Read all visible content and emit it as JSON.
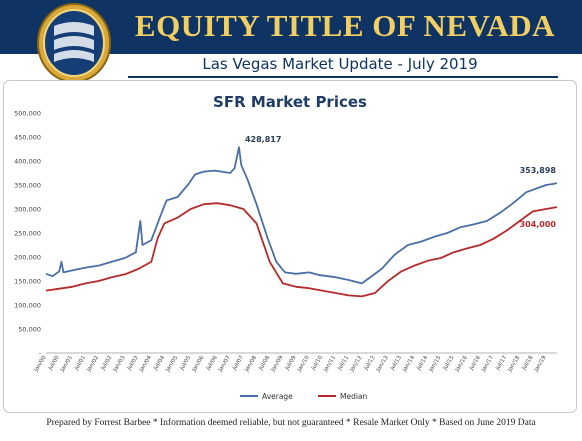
{
  "header": {
    "company": "EQUITY TITLE OF NEVADA",
    "subtitle": "Las Vegas Market Update - July 2019"
  },
  "footer": {
    "text": "Prepared by Forrest Barbee * Information deemed reliable, but not guaranteed * Resale Market Only * Based on June 2019 Data"
  },
  "colors": {
    "banner": "#0f3464",
    "gold": "#f2cf62",
    "average": "#4a6fa5",
    "median": "#b52a2a"
  },
  "chart_data": {
    "type": "line",
    "title": "SFR Market Prices",
    "xlabel": "",
    "ylabel": "",
    "ylim": [
      0,
      500000
    ],
    "yticks": [
      "-",
      "50,000",
      "100,000",
      "150,000",
      "200,000",
      "250,000",
      "300,000",
      "350,000",
      "400,000",
      "450,000",
      "500,000"
    ],
    "grid": false,
    "legend": "bottom-center",
    "x_start": "2000-01",
    "x_end": "2019-06",
    "xticks": [
      "Jan/00",
      "Jul/00",
      "Jan/01",
      "Jul/01",
      "Jan/02",
      "Jul/02",
      "Jan/03",
      "Jul/03",
      "Jan/04",
      "Jul/04",
      "Jan/05",
      "Jul/05",
      "Jan/06",
      "Jul/06",
      "Jan/07",
      "Jul/07",
      "Jan/08",
      "Jul/08",
      "Jan/09",
      "Jul/09",
      "Jan/10",
      "Jul/10",
      "Jan/11",
      "Jul/11",
      "Jan/12",
      "Jul/12",
      "Jan/13",
      "Jul/13",
      "Jan/14",
      "Jul/14",
      "Jan/15",
      "Jul/15",
      "Jan/16",
      "Jul/16",
      "Jan/17",
      "Jul/17",
      "Jan/18",
      "Jul/18",
      "Jan/19"
    ],
    "series": [
      {
        "name": "Average",
        "color": "#4a6fa5",
        "points": [
          [
            "2000-01",
            165000
          ],
          [
            "2000-04",
            160000
          ],
          [
            "2000-07",
            170000
          ],
          [
            "2000-08",
            190000
          ],
          [
            "2000-09",
            168000
          ],
          [
            "2001-01",
            172000
          ],
          [
            "2001-07",
            178000
          ],
          [
            "2002-01",
            182000
          ],
          [
            "2002-07",
            190000
          ],
          [
            "2003-01",
            198000
          ],
          [
            "2003-06",
            210000
          ],
          [
            "2003-08",
            275000
          ],
          [
            "2003-09",
            225000
          ],
          [
            "2004-01",
            235000
          ],
          [
            "2004-06",
            295000
          ],
          [
            "2004-08",
            318000
          ],
          [
            "2005-01",
            325000
          ],
          [
            "2005-06",
            352000
          ],
          [
            "2005-09",
            372000
          ],
          [
            "2006-01",
            378000
          ],
          [
            "2006-06",
            380000
          ],
          [
            "2007-01",
            375000
          ],
          [
            "2007-03",
            385000
          ],
          [
            "2007-05",
            428817
          ],
          [
            "2007-06",
            392000
          ],
          [
            "2007-09",
            360000
          ],
          [
            "2008-01",
            310000
          ],
          [
            "2008-06",
            240000
          ],
          [
            "2008-10",
            190000
          ],
          [
            "2009-02",
            168000
          ],
          [
            "2009-07",
            165000
          ],
          [
            "2010-01",
            168000
          ],
          [
            "2010-06",
            162000
          ],
          [
            "2011-01",
            158000
          ],
          [
            "2011-07",
            152000
          ],
          [
            "2012-01",
            145000
          ],
          [
            "2012-04",
            155000
          ],
          [
            "2012-10",
            175000
          ],
          [
            "2013-04",
            205000
          ],
          [
            "2013-10",
            225000
          ],
          [
            "2014-04",
            232000
          ],
          [
            "2014-10",
            242000
          ],
          [
            "2015-04",
            250000
          ],
          [
            "2015-10",
            262000
          ],
          [
            "2016-04",
            268000
          ],
          [
            "2016-10",
            275000
          ],
          [
            "2017-04",
            292000
          ],
          [
            "2017-10",
            312000
          ],
          [
            "2018-04",
            335000
          ],
          [
            "2018-10",
            345000
          ],
          [
            "2019-01",
            350000
          ],
          [
            "2019-04",
            352000
          ],
          [
            "2019-06",
            353898
          ]
        ]
      },
      {
        "name": "Median",
        "color": "#b52a2a",
        "points": [
          [
            "2000-01",
            130000
          ],
          [
            "2000-07",
            134000
          ],
          [
            "2001-01",
            138000
          ],
          [
            "2001-07",
            145000
          ],
          [
            "2002-01",
            150000
          ],
          [
            "2002-07",
            158000
          ],
          [
            "2003-01",
            164000
          ],
          [
            "2003-07",
            175000
          ],
          [
            "2004-01",
            190000
          ],
          [
            "2004-04",
            240000
          ],
          [
            "2004-07",
            270000
          ],
          [
            "2005-01",
            282000
          ],
          [
            "2005-07",
            300000
          ],
          [
            "2006-01",
            310000
          ],
          [
            "2006-07",
            312000
          ],
          [
            "2007-01",
            308000
          ],
          [
            "2007-07",
            300000
          ],
          [
            "2008-01",
            270000
          ],
          [
            "2008-07",
            190000
          ],
          [
            "2009-01",
            145000
          ],
          [
            "2009-07",
            138000
          ],
          [
            "2010-01",
            135000
          ],
          [
            "2010-07",
            130000
          ],
          [
            "2011-01",
            125000
          ],
          [
            "2011-07",
            120000
          ],
          [
            "2012-01",
            118000
          ],
          [
            "2012-07",
            125000
          ],
          [
            "2013-01",
            150000
          ],
          [
            "2013-07",
            170000
          ],
          [
            "2014-01",
            182000
          ],
          [
            "2014-07",
            192000
          ],
          [
            "2015-01",
            198000
          ],
          [
            "2015-07",
            210000
          ],
          [
            "2016-01",
            218000
          ],
          [
            "2016-07",
            225000
          ],
          [
            "2017-01",
            238000
          ],
          [
            "2017-07",
            255000
          ],
          [
            "2018-01",
            275000
          ],
          [
            "2018-07",
            295000
          ],
          [
            "2019-01",
            300000
          ],
          [
            "2019-06",
            304000
          ]
        ]
      }
    ],
    "annotations": [
      {
        "label": "428,817",
        "series": "Average",
        "x": "2007-05",
        "y": 428817
      },
      {
        "label": "353,898",
        "series": "Average",
        "x": "2019-06",
        "y": 353898
      },
      {
        "label": "304,000",
        "series": "Median",
        "x": "2019-06",
        "y": 304000
      }
    ]
  }
}
